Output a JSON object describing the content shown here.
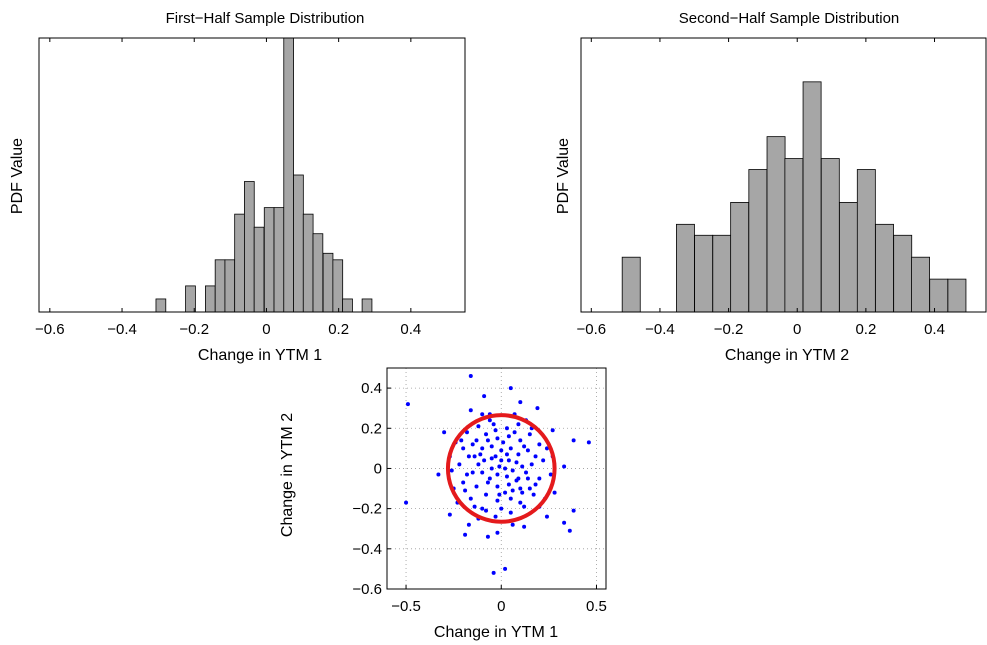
{
  "colors": {
    "bar_fill": "#a6a6a6",
    "bar_edge": "#000000",
    "points": "#0000ff",
    "circle": "#e41a1c",
    "grid": "#9a9a9a"
  },
  "chart_data": [
    {
      "type": "bar",
      "title": "First−Half Sample Distribution",
      "xlabel": "Change in YTM 1",
      "ylabel": "PDF Value",
      "xlim": [
        -0.63,
        0.55
      ],
      "ylim": [
        0,
        42
      ],
      "x_ticks": [
        -0.6,
        -0.4,
        -0.2,
        0,
        0.2,
        0.4
      ],
      "x_tick_labels": [
        "−0.6",
        "−0.4",
        "−0.2",
        "0",
        "0.2",
        "0.4"
      ],
      "y_ticks_shown": false,
      "grid": false,
      "bin_width": 0.0272,
      "bins": [
        {
          "start": -0.306,
          "value": 2
        },
        {
          "start": -0.224,
          "value": 4
        },
        {
          "start": -0.169,
          "value": 4
        },
        {
          "start": -0.142,
          "value": 8
        },
        {
          "start": -0.115,
          "value": 8
        },
        {
          "start": -0.088,
          "value": 15
        },
        {
          "start": -0.061,
          "value": 20
        },
        {
          "start": -0.034,
          "value": 13
        },
        {
          "start": -0.006,
          "value": 16
        },
        {
          "start": 0.021,
          "value": 16
        },
        {
          "start": 0.048,
          "value": 42
        },
        {
          "start": 0.075,
          "value": 21
        },
        {
          "start": 0.102,
          "value": 15
        },
        {
          "start": 0.129,
          "value": 12
        },
        {
          "start": 0.157,
          "value": 9
        },
        {
          "start": 0.184,
          "value": 8
        },
        {
          "start": 0.211,
          "value": 2
        },
        {
          "start": 0.265,
          "value": 2
        }
      ]
    },
    {
      "type": "bar",
      "title": "Second−Half Sample Distribution",
      "xlabel": "Change in YTM 2",
      "ylabel": "PDF Value",
      "xlim": [
        -0.63,
        0.55
      ],
      "ylim": [
        0,
        25
      ],
      "x_ticks": [
        -0.6,
        -0.4,
        -0.2,
        0,
        0.2,
        0.4
      ],
      "x_tick_labels": [
        "−0.6",
        "−0.4",
        "−0.2",
        "0",
        "0.2",
        "0.4"
      ],
      "y_ticks_shown": false,
      "grid": false,
      "bin_width": 0.0526,
      "bins": [
        {
          "start": -0.51,
          "value": 5
        },
        {
          "start": -0.352,
          "value": 8
        },
        {
          "start": -0.299,
          "value": 7
        },
        {
          "start": -0.246,
          "value": 7
        },
        {
          "start": -0.194,
          "value": 10
        },
        {
          "start": -0.141,
          "value": 13
        },
        {
          "start": -0.088,
          "value": 16
        },
        {
          "start": -0.036,
          "value": 14
        },
        {
          "start": 0.017,
          "value": 21
        },
        {
          "start": 0.07,
          "value": 14
        },
        {
          "start": 0.123,
          "value": 10
        },
        {
          "start": 0.175,
          "value": 13
        },
        {
          "start": 0.228,
          "value": 8
        },
        {
          "start": 0.281,
          "value": 7
        },
        {
          "start": 0.333,
          "value": 5
        },
        {
          "start": 0.386,
          "value": 3
        },
        {
          "start": 0.439,
          "value": 3
        }
      ]
    },
    {
      "type": "scatter",
      "title": "",
      "xlabel": "Change in YTM 1",
      "ylabel": "Change in YTM 2",
      "xlim": [
        -0.6,
        0.55
      ],
      "ylim": [
        -0.6,
        0.5
      ],
      "x_ticks": [
        -0.5,
        0,
        0.5
      ],
      "x_tick_labels": [
        "−0.5",
        "0",
        "0.5"
      ],
      "y_ticks": [
        -0.6,
        -0.4,
        -0.2,
        0,
        0.2,
        0.4
      ],
      "y_tick_labels": [
        "−0.6",
        "−0.4",
        "−0.2",
        "0",
        "0.2",
        "0.4"
      ],
      "grid": true,
      "circle": {
        "center": [
          0,
          0
        ],
        "radius": 0.28
      },
      "points": [
        [
          -0.49,
          0.32
        ],
        [
          -0.5,
          -0.17
        ],
        [
          -0.16,
          0.46
        ],
        [
          0.05,
          0.4
        ],
        [
          0.38,
          0.14
        ],
        [
          0.46,
          0.13
        ],
        [
          0.38,
          -0.21
        ],
        [
          0.33,
          -0.27
        ],
        [
          0.36,
          -0.31
        ],
        [
          -0.04,
          -0.52
        ],
        [
          0.02,
          -0.5
        ],
        [
          -0.07,
          -0.34
        ],
        [
          -0.19,
          -0.33
        ],
        [
          -0.3,
          0.18
        ],
        [
          -0.33,
          -0.03
        ],
        [
          -0.27,
          -0.23
        ],
        [
          -0.17,
          -0.28
        ],
        [
          0.27,
          0.19
        ],
        [
          0.24,
          -0.24
        ],
        [
          0.12,
          -0.29
        ],
        [
          -0.02,
          -0.32
        ],
        [
          0.1,
          0.33
        ],
        [
          -0.09,
          0.36
        ],
        [
          -0.16,
          0.29
        ],
        [
          0.19,
          0.3
        ],
        [
          0.33,
          0.01
        ],
        [
          0.28,
          -0.12
        ],
        [
          -0.23,
          -0.17
        ],
        [
          -0.18,
          0.18
        ],
        [
          -0.12,
          0.21
        ],
        [
          -0.06,
          0.24
        ],
        [
          0.03,
          0.2
        ],
        [
          0.09,
          0.22
        ],
        [
          0.15,
          0.17
        ],
        [
          0.2,
          0.12
        ],
        [
          0.22,
          0.04
        ],
        [
          0.2,
          -0.05
        ],
        [
          0.17,
          -0.13
        ],
        [
          0.12,
          -0.19
        ],
        [
          0.05,
          -0.22
        ],
        [
          -0.03,
          -0.24
        ],
        [
          -0.1,
          -0.2
        ],
        [
          -0.16,
          -0.15
        ],
        [
          -0.2,
          -0.07
        ],
        [
          -0.22,
          0.02
        ],
        [
          -0.2,
          0.1
        ],
        [
          -0.13,
          0.14
        ],
        [
          -0.08,
          0.17
        ],
        [
          -0.02,
          0.15
        ],
        [
          0.04,
          0.16
        ],
        [
          0.1,
          0.14
        ],
        [
          0.14,
          0.09
        ],
        [
          0.16,
          0.02
        ],
        [
          0.14,
          -0.05
        ],
        [
          0.1,
          -0.1
        ],
        [
          0.05,
          -0.15
        ],
        [
          -0.02,
          -0.16
        ],
        [
          -0.08,
          -0.13
        ],
        [
          -0.13,
          -0.09
        ],
        [
          -0.15,
          -0.02
        ],
        [
          -0.14,
          0.06
        ],
        [
          -0.1,
          0.1
        ],
        [
          -0.05,
          0.11
        ],
        [
          0.0,
          0.09
        ],
        [
          0.05,
          0.1
        ],
        [
          0.09,
          0.07
        ],
        [
          0.11,
          0.01
        ],
        [
          0.09,
          -0.05
        ],
        [
          0.04,
          -0.08
        ],
        [
          -0.02,
          -0.09
        ],
        [
          -0.07,
          -0.07
        ],
        [
          -0.1,
          -0.02
        ],
        [
          -0.09,
          0.04
        ],
        [
          -0.05,
          0.05
        ],
        [
          0.0,
          0.04
        ],
        [
          0.04,
          0.04
        ],
        [
          0.06,
          -0.01
        ],
        [
          0.03,
          -0.04
        ],
        [
          -0.02,
          -0.03
        ],
        [
          -0.05,
          0.0
        ],
        [
          -0.01,
          0.01
        ],
        [
          0.02,
          0.0
        ],
        [
          -0.24,
          0.13
        ],
        [
          -0.25,
          -0.1
        ],
        [
          0.24,
          0.1
        ],
        [
          0.23,
          -0.15
        ],
        [
          -0.06,
          0.27
        ],
        [
          0.06,
          -0.28
        ],
        [
          -0.12,
          -0.25
        ],
        [
          0.13,
          0.24
        ],
        [
          -0.27,
          0.06
        ],
        [
          0.26,
          -0.03
        ],
        [
          -0.04,
          0.22
        ],
        [
          0.07,
          0.18
        ],
        [
          0.18,
          -0.08
        ],
        [
          -0.18,
          -0.03
        ],
        [
          -0.08,
          -0.21
        ],
        [
          0.0,
          -0.2
        ],
        [
          0.13,
          -0.02
        ],
        [
          -0.12,
          0.02
        ],
        [
          0.01,
          0.13
        ],
        [
          0.02,
          -0.12
        ],
        [
          -0.17,
          0.06
        ],
        [
          0.18,
          0.06
        ],
        [
          -0.03,
          0.19
        ],
        [
          0.1,
          -0.17
        ],
        [
          -0.21,
          0.14
        ],
        [
          0.2,
          -0.19
        ],
        [
          -0.14,
          -0.19
        ],
        [
          0.16,
          0.2
        ],
        [
          0.07,
          0.27
        ],
        [
          -0.1,
          0.27
        ],
        [
          -0.26,
          -0.01
        ],
        [
          0.27,
          0.06
        ],
        [
          -0.11,
          0.07
        ],
        [
          0.08,
          0.03
        ],
        [
          0.03,
          0.07
        ],
        [
          -0.06,
          -0.05
        ],
        [
          0.06,
          -0.11
        ],
        [
          -0.01,
          -0.13
        ],
        [
          0.12,
          0.11
        ],
        [
          -0.15,
          0.12
        ],
        [
          0.11,
          -0.12
        ],
        [
          -0.19,
          -0.11
        ],
        [
          -0.03,
          0.06
        ],
        [
          0.08,
          -0.06
        ],
        [
          -0.07,
          0.14
        ],
        [
          0.15,
          -0.1
        ]
      ]
    }
  ]
}
